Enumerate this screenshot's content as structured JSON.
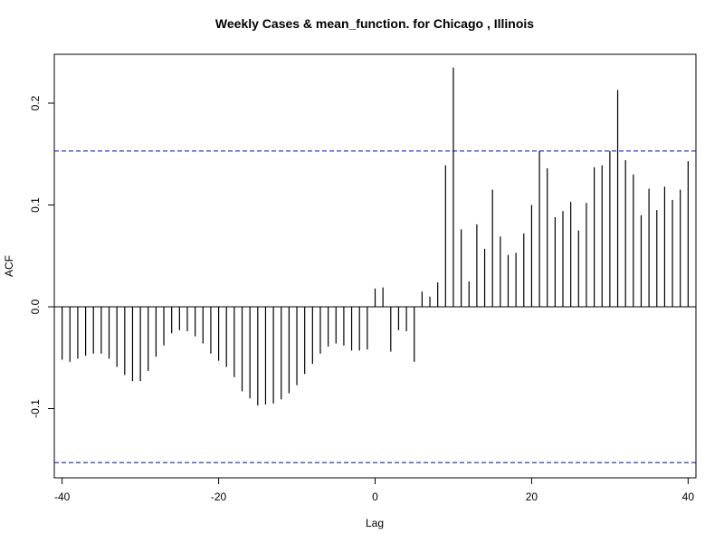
{
  "chart_data": {
    "type": "bar",
    "title": "Weekly Cases & mean_function. for Chicago , Illinois",
    "xlabel": "Lag",
    "ylabel": "ACF",
    "xlim": [
      -41,
      41
    ],
    "ylim": [
      -0.168,
      0.248
    ],
    "x_ticks": [
      -40,
      -20,
      0,
      20,
      40
    ],
    "x_tick_labels": [
      "-40",
      "-20",
      "0",
      "20",
      "40"
    ],
    "y_ticks": [
      -0.1,
      0.0,
      0.1,
      0.2
    ],
    "y_tick_labels": [
      "-0.1",
      "0.0",
      "0.1",
      "0.2"
    ],
    "confidence_bound": 0.153,
    "grid": false,
    "series": [
      {
        "x": [
          -40,
          -39,
          -38,
          -37,
          -36,
          -35,
          -34,
          -33,
          -32,
          -31,
          -30,
          -29,
          -28,
          -27,
          -26,
          -25,
          -24,
          -23,
          -22,
          -21,
          -20,
          -19,
          -18,
          -17,
          -16,
          -15,
          -14,
          -13,
          -12,
          -11,
          -10,
          -9,
          -8,
          -7,
          -6,
          -5,
          -4,
          -3,
          -2,
          -1,
          0,
          1,
          2,
          3,
          4,
          5,
          6,
          7,
          8,
          9,
          10,
          11,
          12,
          13,
          14,
          15,
          16,
          17,
          18,
          19,
          20,
          21,
          22,
          23,
          24,
          25,
          26,
          27,
          28,
          29,
          30,
          31,
          32,
          33,
          34,
          35,
          36,
          37,
          38,
          39,
          40
        ],
        "values": [
          -0.052,
          -0.054,
          -0.051,
          -0.048,
          -0.046,
          -0.046,
          -0.051,
          -0.059,
          -0.067,
          -0.073,
          -0.073,
          -0.063,
          -0.049,
          -0.038,
          -0.026,
          -0.023,
          -0.024,
          -0.029,
          -0.036,
          -0.046,
          -0.053,
          -0.059,
          -0.069,
          -0.083,
          -0.09,
          -0.097,
          -0.096,
          -0.095,
          -0.091,
          -0.085,
          -0.077,
          -0.066,
          -0.056,
          -0.046,
          -0.039,
          -0.036,
          -0.038,
          -0.043,
          -0.043,
          -0.042,
          0.018,
          0.019,
          -0.044,
          -0.023,
          -0.024,
          -0.054,
          0.015,
          0.01,
          0.024,
          0.139,
          0.235,
          0.076,
          0.025,
          0.081,
          0.057,
          0.115,
          0.069,
          0.051,
          0.053,
          0.072,
          0.1,
          0.153,
          0.136,
          0.088,
          0.094,
          0.103,
          0.075,
          0.102,
          0.137,
          0.139,
          0.153,
          0.213,
          0.144,
          0.13,
          0.09,
          0.116,
          0.095,
          0.118,
          0.105,
          0.115,
          0.143
        ]
      }
    ]
  }
}
